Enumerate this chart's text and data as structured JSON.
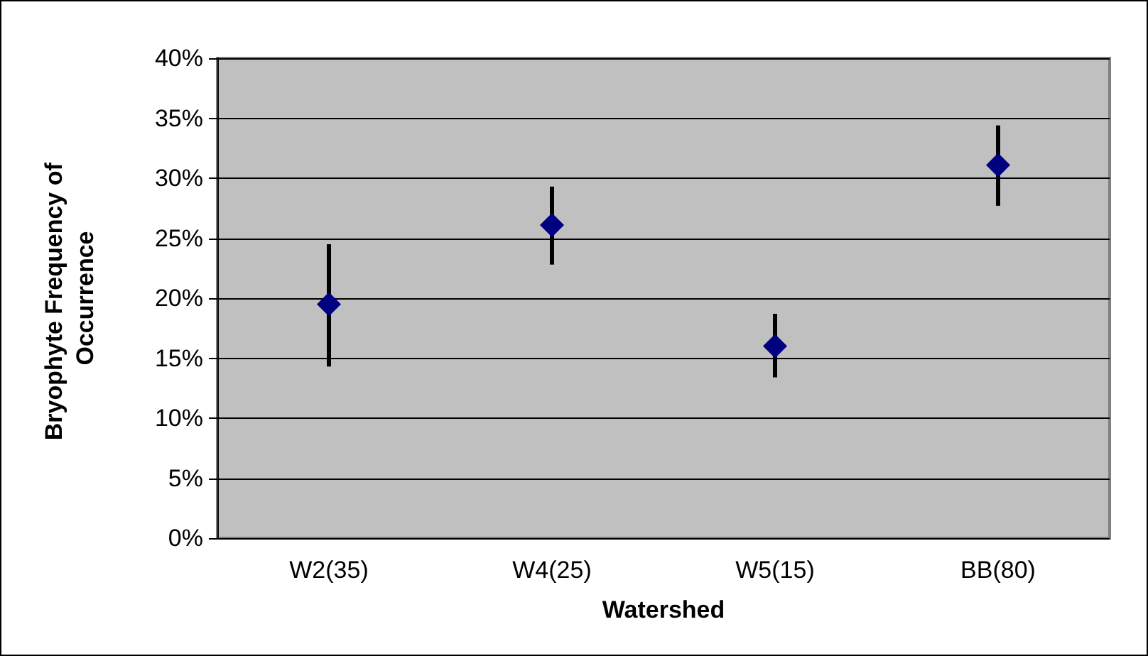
{
  "chart_data": {
    "type": "scatter",
    "xlabel": "Watershed",
    "ylabel": "Bryophyte Frequency of Occurrence",
    "categories": [
      "W2(35)",
      "W4(25)",
      "W5(15)",
      "BB(80)"
    ],
    "series": [
      {
        "color": "#000080",
        "values": [
          19.5,
          26.1,
          16.0,
          31.1
        ],
        "errors": [
          [
            14.3,
            24.5
          ],
          [
            22.8,
            29.3
          ],
          [
            13.4,
            18.7
          ],
          [
            27.7,
            34.4
          ]
        ]
      }
    ],
    "ylim": [
      0,
      40
    ],
    "yticks": [
      {
        "value": 0,
        "label": "0%"
      },
      {
        "value": 5,
        "label": "5%"
      },
      {
        "value": 10,
        "label": "10%"
      },
      {
        "value": 15,
        "label": "15%"
      },
      {
        "value": 20,
        "label": "20%"
      },
      {
        "value": 25,
        "label": "25%"
      },
      {
        "value": 30,
        "label": "30%"
      },
      {
        "value": 35,
        "label": "35%"
      },
      {
        "value": 40,
        "label": "40%"
      }
    ],
    "grid": "y",
    "marker": "diamond"
  }
}
